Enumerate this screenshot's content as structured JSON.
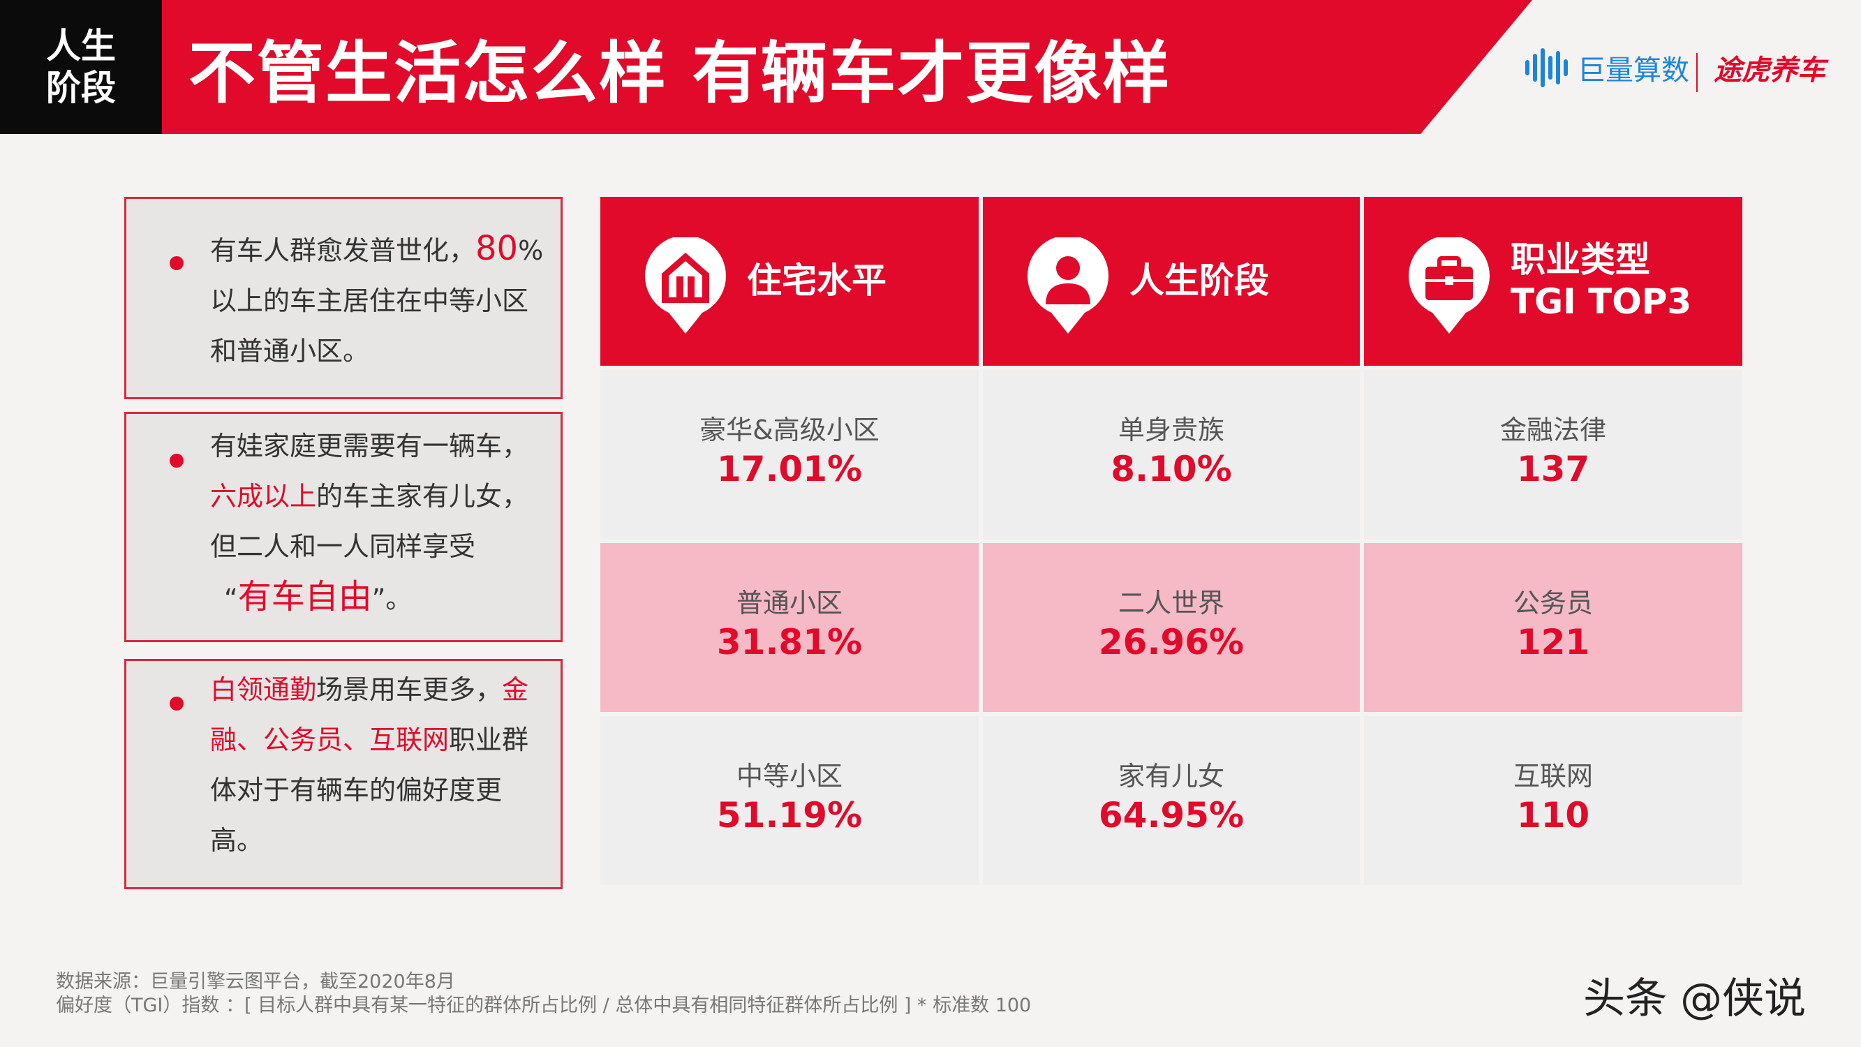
{
  "header": {
    "section_tag_line1": "人生",
    "section_tag_line2": "阶段",
    "title": "不管生活怎么样 有辆车才更像样",
    "brand_left": "巨量算数",
    "brand_right": "途虎养车"
  },
  "notes": [
    {
      "p1": "有车人群愈发普世化，",
      "p2": "80",
      "p3": "%以上的车主居住在中等小区和普通小区。"
    },
    {
      "p1": "有娃家庭更需要有一辆车，",
      "p2": "六成以上",
      "p3": "的车主家有儿女，但二人和一人同样享受",
      "p4": "“",
      "p5": "有车自由",
      "p6": "”。"
    },
    {
      "p1": "白领通勤",
      "p2": "场景用车更多，",
      "p3": "金融、公务员、互联网",
      "p4": "职业群体对于有辆车的偏好度更高。"
    }
  ],
  "table": {
    "columns": [
      {
        "title_line1": "住宅水平",
        "title_line2": "",
        "icon": "house-pin-icon",
        "rows": [
          {
            "label": "豪华&高级小区",
            "value": "17.01%"
          },
          {
            "label": "普通小区",
            "value": "31.81%"
          },
          {
            "label": "中等小区",
            "value": "51.19%"
          }
        ]
      },
      {
        "title_line1": "人生阶段",
        "title_line2": "",
        "icon": "person-pin-icon",
        "rows": [
          {
            "label": "单身贵族",
            "value": "8.10%"
          },
          {
            "label": "二人世界",
            "value": "26.96%"
          },
          {
            "label": "家有儿女",
            "value": "64.95%"
          }
        ]
      },
      {
        "title_line1": "职业类型",
        "title_line2": "TGI TOP3",
        "icon": "briefcase-pin-icon",
        "rows": [
          {
            "label": "金融法律",
            "value": "137"
          },
          {
            "label": "公务员",
            "value": "121"
          },
          {
            "label": "互联网",
            "value": "110"
          }
        ]
      }
    ]
  },
  "footer": {
    "source": "数据来源：巨量引擎云图平台，截至2020年8月",
    "tgi_note": "偏好度（TGI）指数 ：[ 目标人群中具有某一特征的群体所占比例 / 总体中具有相同特征群体所占比例 ] * 标准数 100"
  },
  "watermark": "头条 @侠说",
  "colors": {
    "accent": "#e10a2a",
    "pink_row": "#f6b9c6",
    "light_row": "#eeeeee",
    "tag_black": "#0b0b0b"
  }
}
